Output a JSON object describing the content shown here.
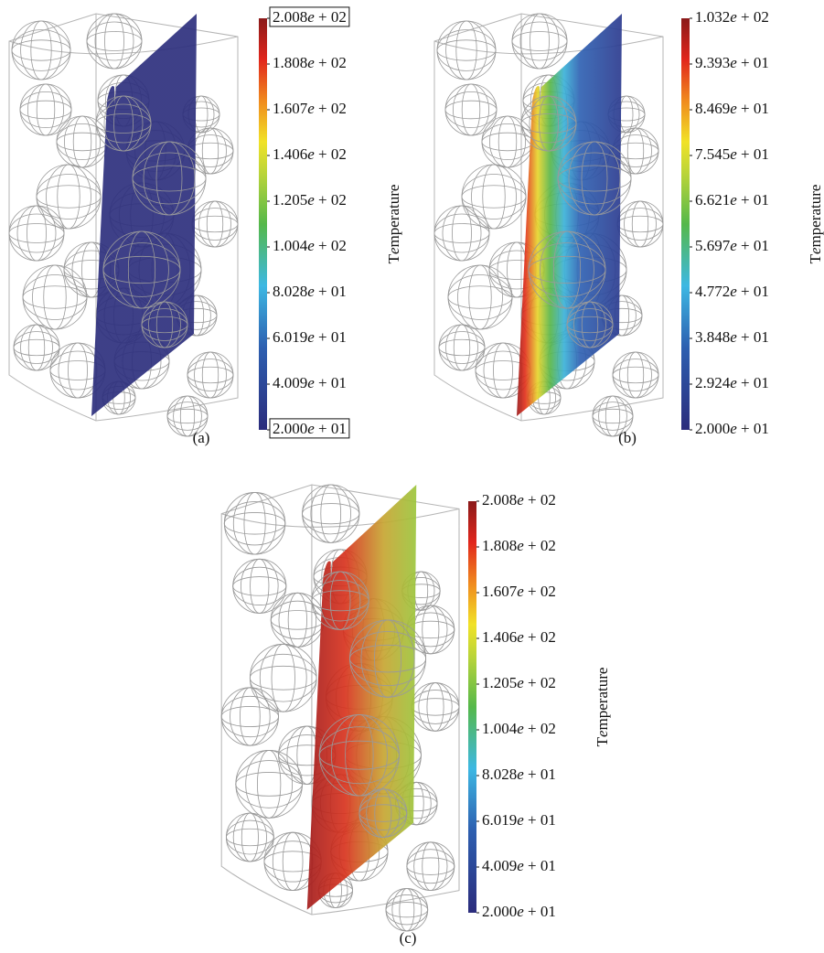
{
  "panels": [
    {
      "caption": "(a)",
      "colorbar": {
        "label": "Temperature",
        "ticks": [
          "2.008e + 02",
          "1.808e + 02",
          "1.607e + 02",
          "1.406e + 02",
          "1.205e + 02",
          "1.004e + 02",
          "8.028e + 01",
          "6.019e + 01",
          "4.009e + 01",
          "2.000e + 01"
        ]
      }
    },
    {
      "caption": "(b)",
      "colorbar": {
        "label": "Temperature",
        "ticks": [
          "1.032e + 02",
          "9.393e + 01",
          "8.469e + 01",
          "7.545e + 01",
          "6.621e + 01",
          "5.697e + 01",
          "4.772e + 01",
          "3.848e + 01",
          "2.924e + 01",
          "2.000e + 01"
        ]
      }
    },
    {
      "caption": "(c)",
      "colorbar": {
        "label": "Temperature",
        "ticks": [
          "2.008e + 02",
          "1.808e + 02",
          "1.607e + 02",
          "1.406e + 02",
          "1.205e + 02",
          "1.004e + 02",
          "8.028e + 01",
          "6.019e + 01",
          "4.009e + 01",
          "2.000e + 01"
        ]
      }
    }
  ]
}
